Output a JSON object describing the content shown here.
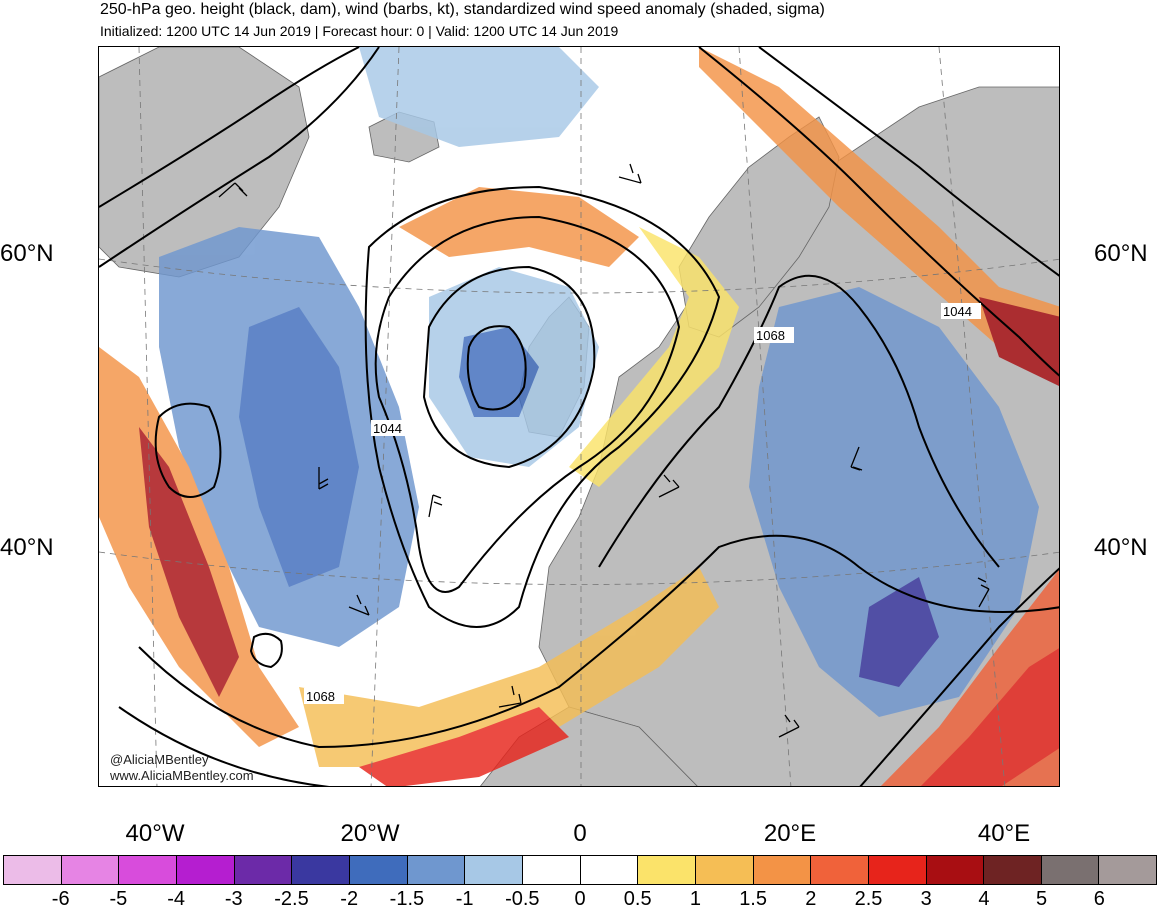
{
  "header": {
    "title": "250-hPa geo. height (black, dam), wind (barbs, kt), standardized wind speed anomaly (shaded, sigma)",
    "subtitle": "Initialized: 1200 UTC 14 Jun 2019 | Forecast hour: 0 | Valid: 1200 UTC 14 Jun 2019"
  },
  "map": {
    "lat_labels": {
      "north60": "60°N",
      "north40": "40°N"
    },
    "lon_labels": {
      "w40": "40°W",
      "w20": "20°W",
      "zero": "0",
      "e20": "20°E",
      "e40": "40°E"
    },
    "contour_labels": {
      "c1044_mid": "1044",
      "c1068_east": "1068",
      "c1044_east": "1044",
      "c1068_south": "1068"
    },
    "credits": {
      "twitter": "@AliciaMBentley",
      "website": "www.AliciaMBentley.com"
    }
  },
  "colorbar": {
    "colors": [
      "#ecbce8",
      "#e684e4",
      "#d84cdc",
      "#b51ed0",
      "#6c2aa8",
      "#3a38a0",
      "#3f6cbc",
      "#6f97cf",
      "#a7c8e6",
      "#ffffff",
      "#ffffff",
      "#fbe36a",
      "#f5be55",
      "#f39346",
      "#f0623a",
      "#e7241b",
      "#a80e12",
      "#6e2323",
      "#7a7070",
      "#a49a9a"
    ],
    "ticks": [
      "-6",
      "-5",
      "-4",
      "-3",
      "-2.5",
      "-2",
      "-1.5",
      "-1",
      "-0.5",
      "0",
      "0.5",
      "1",
      "1.5",
      "2",
      "2.5",
      "3",
      "4",
      "5",
      "6"
    ]
  }
}
